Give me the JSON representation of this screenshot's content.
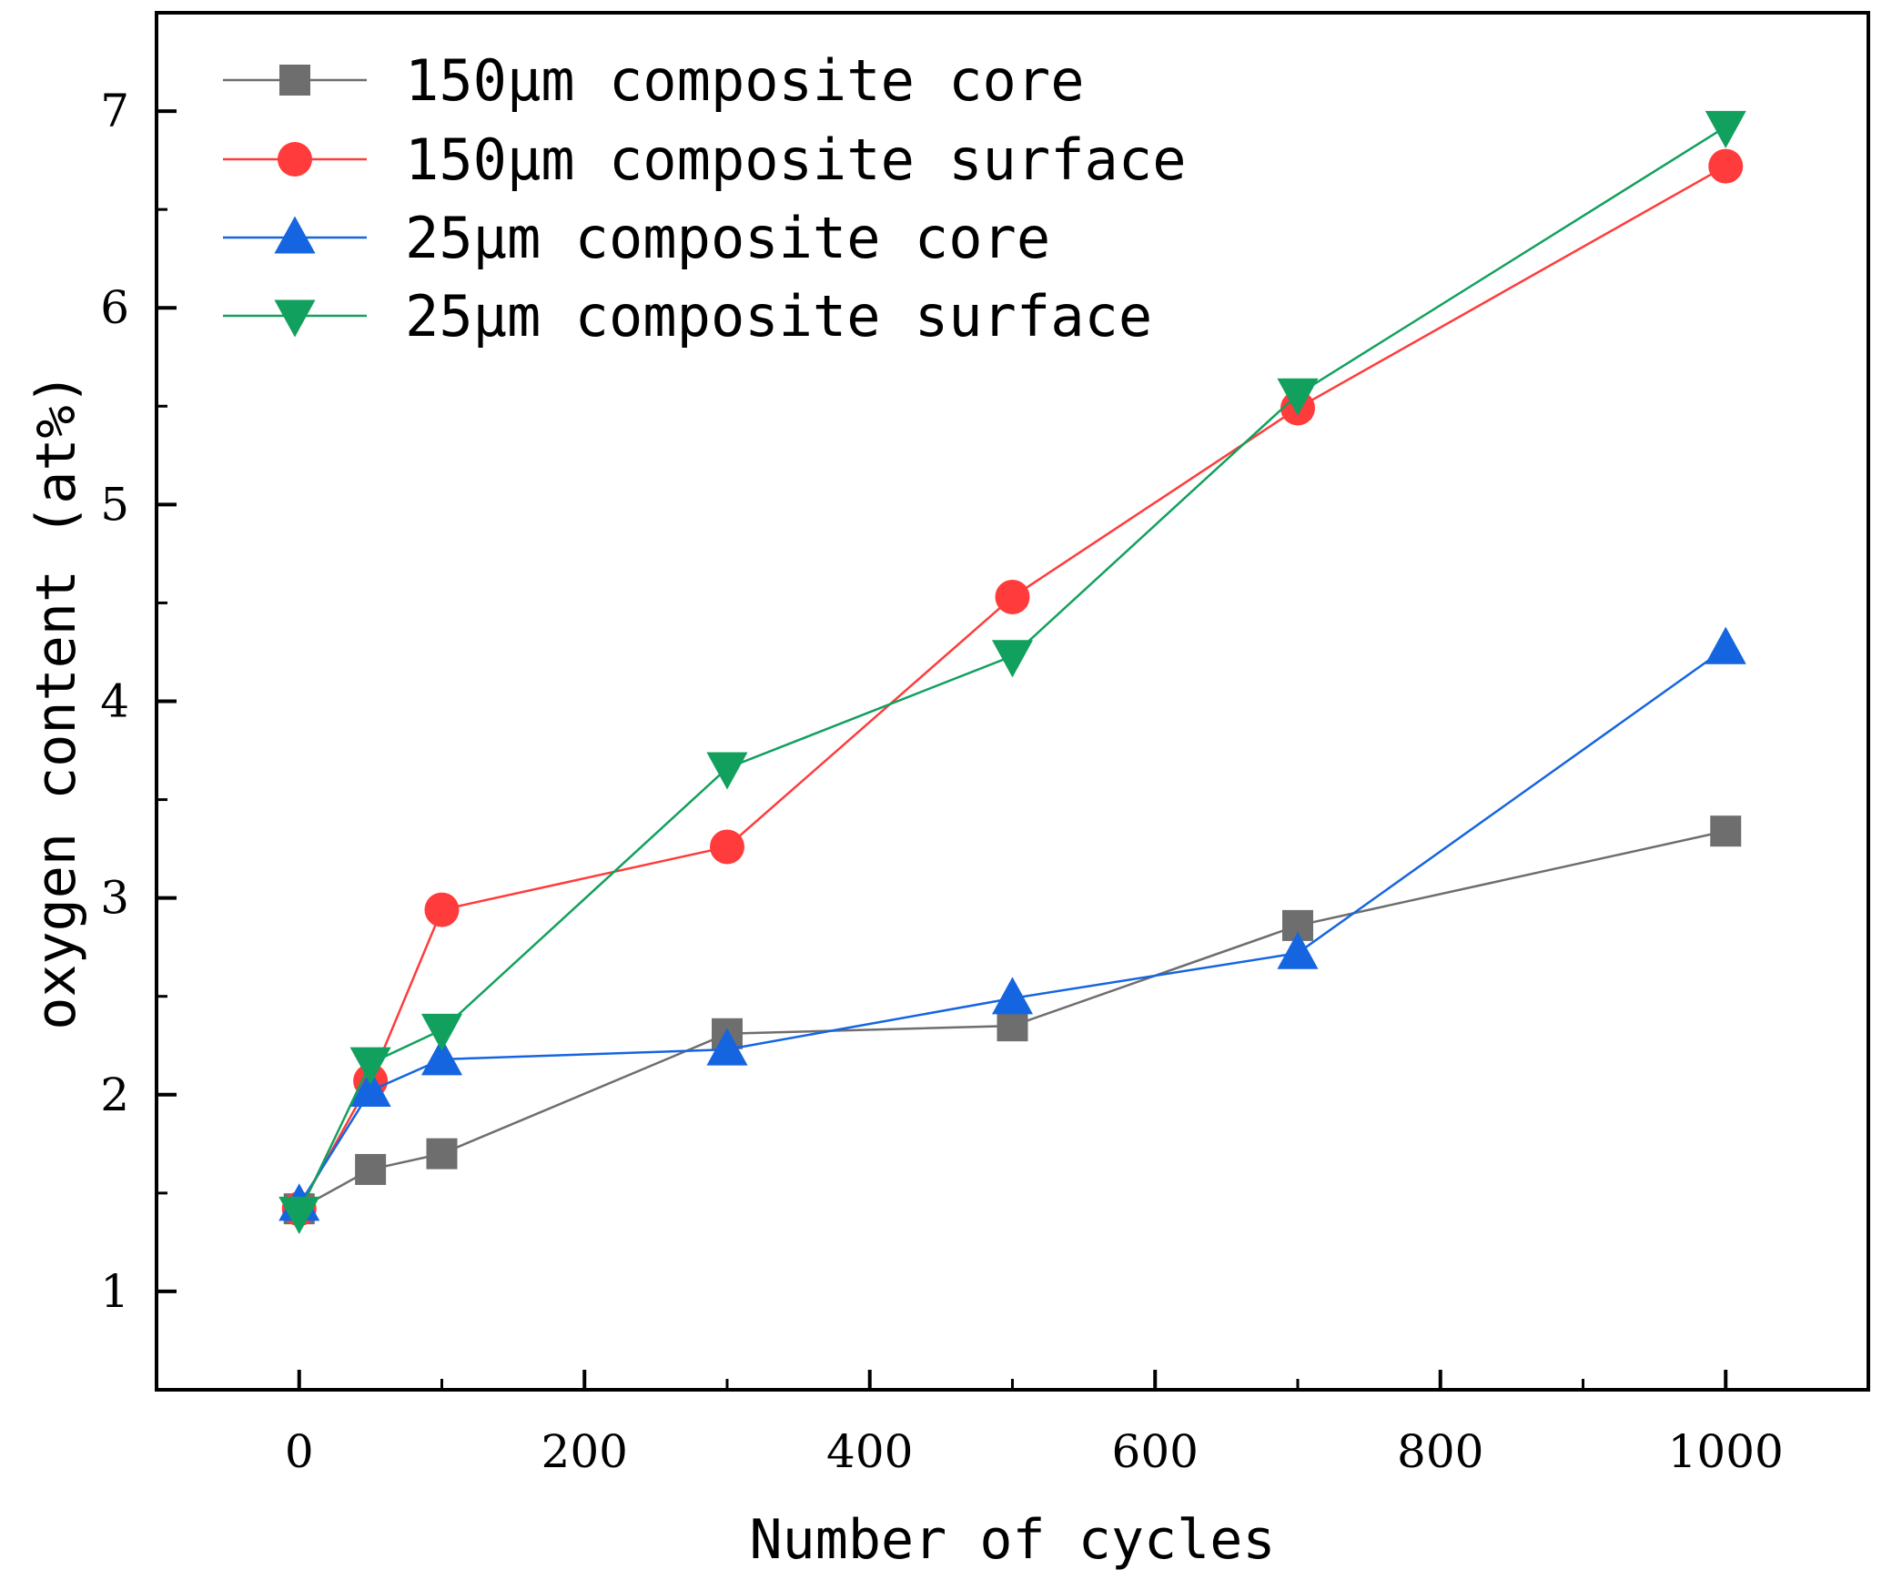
{
  "chart_data": {
    "type": "line",
    "title": "",
    "xlabel": "Number of cycles",
    "ylabel": "oxygen content  (at%)",
    "xlim": [
      -100,
      1100
    ],
    "ylim": [
      0.5,
      7.5
    ],
    "xticks": [
      0,
      200,
      400,
      600,
      800,
      1000
    ],
    "yticks": [
      1,
      2,
      3,
      4,
      5,
      6,
      7
    ],
    "legend_position": "top-left",
    "grid": false,
    "series": [
      {
        "name": "150μm composite core",
        "color": "#6e6e6e",
        "marker": "square",
        "x": [
          0,
          50,
          100,
          300,
          500,
          700,
          1000
        ],
        "y": [
          1.42,
          1.62,
          1.7,
          2.31,
          2.35,
          2.86,
          3.34
        ]
      },
      {
        "name": "150μm composite surface",
        "color": "#ff3b3b",
        "marker": "circle",
        "x": [
          0,
          50,
          100,
          300,
          500,
          700,
          1000
        ],
        "y": [
          1.42,
          2.07,
          2.94,
          3.26,
          4.53,
          5.49,
          6.72
        ]
      },
      {
        "name": "25μm composite core",
        "color": "#1565e0",
        "marker": "triangle-up",
        "x": [
          0,
          50,
          100,
          300,
          500,
          700,
          1000
        ],
        "y": [
          1.44,
          2.02,
          2.18,
          2.23,
          2.49,
          2.72,
          4.27
        ]
      },
      {
        "name": "25μm composite surface",
        "color": "#12a05e",
        "marker": "triangle-down",
        "x": [
          0,
          50,
          100,
          300,
          500,
          700,
          1000
        ],
        "y": [
          1.4,
          2.16,
          2.33,
          3.66,
          4.23,
          5.56,
          6.92
        ]
      }
    ]
  }
}
